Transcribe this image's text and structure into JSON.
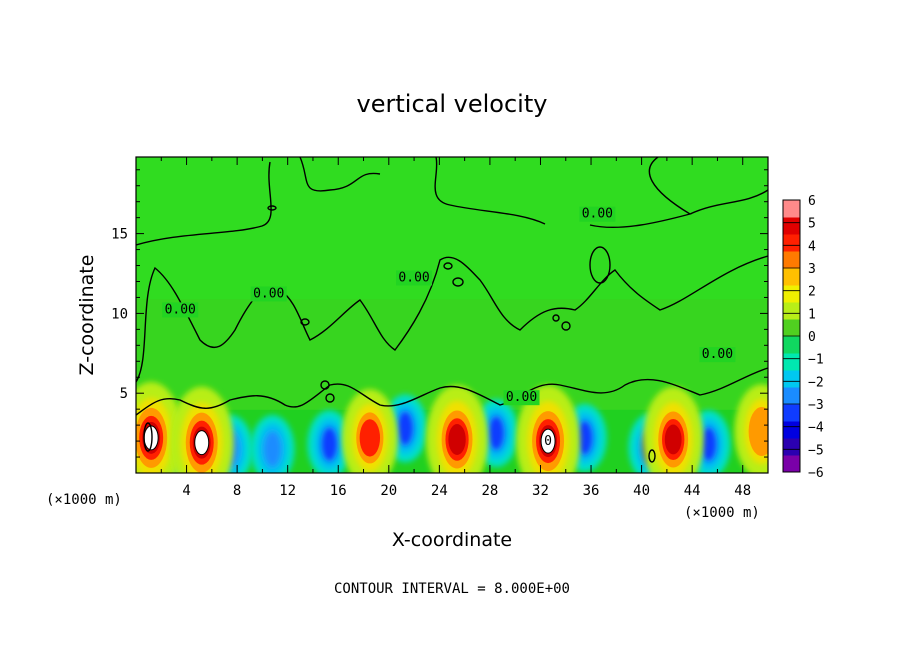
{
  "chart_data": {
    "type": "heatmap",
    "title": "vertical velocity",
    "xlabel": "X-coordinate",
    "ylabel": "Z-coordinate",
    "x_unit": "(×1000 m)",
    "xlim": [
      0,
      50
    ],
    "ylim": [
      0,
      19.8
    ],
    "x_ticks": [
      4,
      8,
      12,
      16,
      20,
      24,
      28,
      32,
      36,
      40,
      44,
      48
    ],
    "y_ticks": [
      5,
      10,
      15
    ],
    "colorbar": {
      "levels": [
        6,
        5,
        4,
        3,
        2,
        1,
        0,
        -1,
        -2,
        -3,
        -4,
        -5,
        -6
      ],
      "colors": [
        "#7a00a8",
        "#2b00b0",
        "#0000e0",
        "#0f3cff",
        "#1a8cff",
        "#00c8f0",
        "#00e8b0",
        "#10d860",
        "#50d020",
        "#b8ee18",
        "#f0f000",
        "#ffc000",
        "#ff7a00",
        "#ff2000",
        "#e00000",
        "#ff8a8a"
      ]
    },
    "contour_labels": [
      {
        "text": "0.00",
        "x": 36.5,
        "z": 16.0
      },
      {
        "text": "0.00",
        "x": 3.5,
        "z": 10.0
      },
      {
        "text": "0.00",
        "x": 10.5,
        "z": 11.0
      },
      {
        "text": "0.00",
        "x": 22.0,
        "z": 12.0
      },
      {
        "text": "0.00",
        "x": 30.5,
        "z": 4.5
      },
      {
        "text": "0.00",
        "x": 46.0,
        "z": 7.2
      }
    ],
    "updrafts": [
      {
        "x": 1.2,
        "z": 2.2,
        "w": 6,
        "value": "6"
      },
      {
        "x": 5.2,
        "z": 1.9,
        "w": 6,
        "value": "6"
      },
      {
        "x": 18.5,
        "z": 2.2,
        "w": 3.6,
        "value": "4"
      },
      {
        "x": 25.4,
        "z": 2.1,
        "w": 5,
        "value": "5"
      },
      {
        "x": 32.6,
        "z": 2.0,
        "w": 6,
        "value": "6",
        "label": "0"
      },
      {
        "x": 42.5,
        "z": 2.1,
        "w": 4.6,
        "value": "5"
      },
      {
        "x": 49.5,
        "z": 2.6,
        "w": 3.2,
        "value": "3"
      }
    ],
    "downdrafts": [
      {
        "x": 3.0,
        "z": 1.7,
        "w": -3.5
      },
      {
        "x": 7.5,
        "z": 1.5,
        "w": -2.6
      },
      {
        "x": 10.8,
        "z": 1.5,
        "w": -3.0
      },
      {
        "x": 15.3,
        "z": 1.8,
        "w": -3.2
      },
      {
        "x": 21.3,
        "z": 2.8,
        "w": -3.2
      },
      {
        "x": 28.5,
        "z": 2.5,
        "w": -3.4
      },
      {
        "x": 35.5,
        "z": 2.2,
        "w": -3.6
      },
      {
        "x": 40.7,
        "z": 1.6,
        "w": -5.0
      },
      {
        "x": 45.3,
        "z": 1.8,
        "w": -3.6
      }
    ]
  },
  "footer": "CONTOUR INTERVAL = 8.000E+00"
}
